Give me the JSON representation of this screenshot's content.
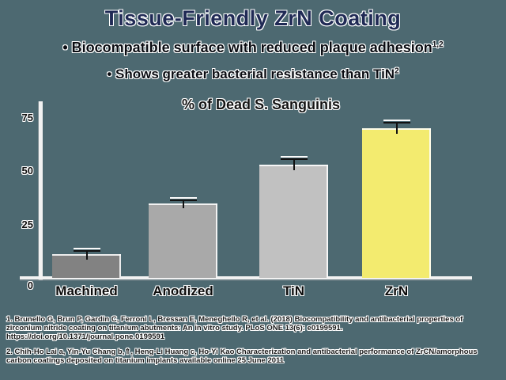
{
  "slide": {
    "title": "Tissue-Friendly ZrN Coating",
    "bullet_marker": "•",
    "bullets": [
      {
        "text": "Biocompatible surface with reduced plaque adhesion",
        "superscript": "1,2"
      },
      {
        "text": "Shows greater bacterial resistance than TiN",
        "superscript": "2"
      }
    ],
    "footnotes": [
      "1. Brunello G, Brun P, Gardin C, Ferroni L, Bressan E, Meneghello R, et al. (2018) Biocompatibility and antibacterial properties of zirconium nitride coating on titanium abutments: An in vitro study. PLoS ONE 13(6): e0199591. https://doi.org/10.1371/journal.pone.0199591",
      "2. Chih-Ho Lai a, Yin-Yu Chang b,⇑, Heng-Li Huang c, Ho-Yi Kao Characterization and antibacterial performance of ZrCN/amorphous carbon coatings deposited on titanium implants available online 25 June 2011"
    ],
    "colors": {
      "background": "#4d6971",
      "title_text": "#202a55",
      "body_text": "#0a0c12",
      "axis_line": "#f2f2f2"
    }
  },
  "chart_data": {
    "type": "bar",
    "title": "% of Dead S. Sanguinis",
    "categories": [
      "Machined",
      "Anodized",
      "TiN",
      "ZrN"
    ],
    "values": [
      11,
      35,
      53,
      70
    ],
    "error_bars": [
      2,
      1.5,
      3,
      3
    ],
    "bar_colors": [
      "#828282",
      "#a9a9a9",
      "#c1c1c1",
      "#f3eb6f"
    ],
    "yticks": [
      0,
      25,
      50,
      75
    ],
    "ylim": [
      0,
      82
    ],
    "xlabel": "",
    "ylabel": "",
    "grid": false,
    "legend": "none"
  }
}
